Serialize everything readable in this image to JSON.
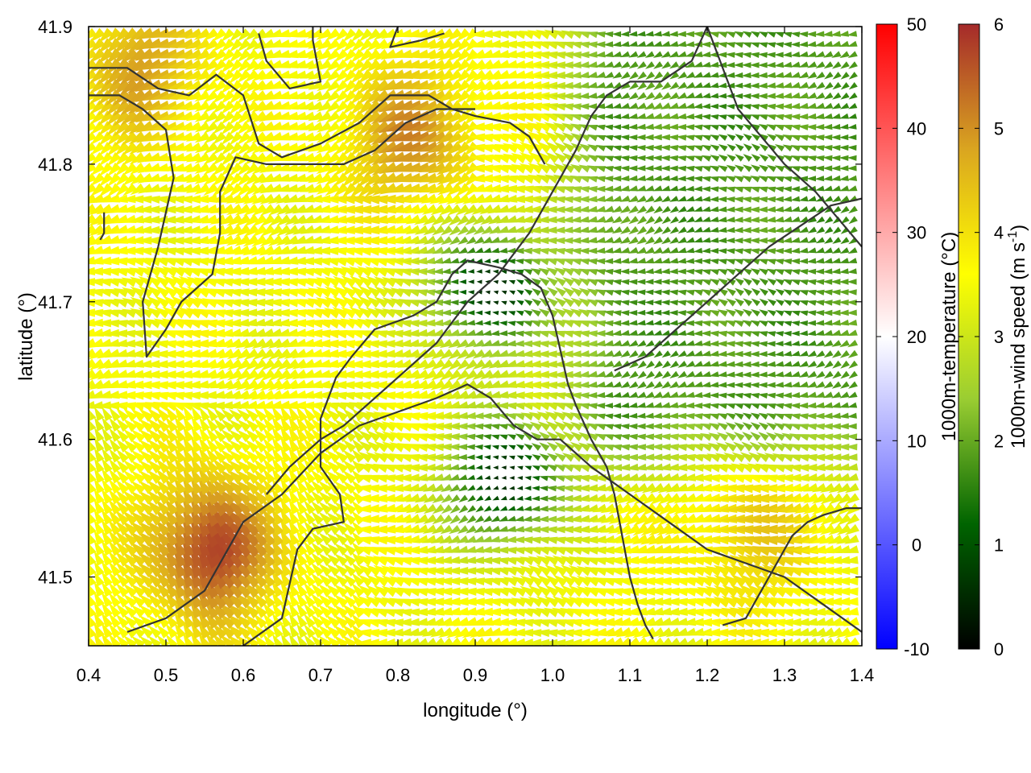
{
  "chart_data": {
    "type": "heatmap",
    "subtype": "vector-field-with-contours",
    "xlabel": "longitude (°)",
    "ylabel": "latitude (°)",
    "xlim": [
      0.4,
      1.4
    ],
    "ylim": [
      41.45,
      41.9
    ],
    "xticks": [
      "0.4",
      "0.5",
      "0.6",
      "0.7",
      "0.8",
      "0.9",
      "1.0",
      "1.1",
      "1.2",
      "1.3",
      "1.4"
    ],
    "yticks": [
      "41.5",
      "41.6",
      "41.7",
      "41.8",
      "41.9"
    ],
    "grid": false,
    "colorbars": [
      {
        "label": "1000m-temperature (°C)",
        "range": [
          -10,
          50
        ],
        "ticks": [
          "-10",
          "0",
          "10",
          "20",
          "30",
          "40",
          "50"
        ],
        "colors": [
          "#0000ff",
          "#ffffff",
          "#ff0000"
        ]
      },
      {
        "label_prefix": "1000m-wind speed (m s",
        "label_exp": "-1",
        "label_suffix": ")",
        "range": [
          0,
          6
        ],
        "ticks": [
          "0",
          "1",
          "2",
          "3",
          "4",
          "5",
          "6"
        ],
        "colors": [
          "#000000",
          "#006400",
          "#9acd32",
          "#ffff00",
          "#daa520",
          "#a52a2a"
        ]
      }
    ],
    "wind_field": {
      "description_level": "approximate",
      "calm_centers": [
        {
          "lon": 0.92,
          "lat": 41.71,
          "speed_min": 0.5
        },
        {
          "lon": 0.94,
          "lat": 41.57,
          "speed_min": 0.5
        }
      ],
      "strong_regions": [
        {
          "lon": 0.56,
          "lat": 41.52,
          "speed": 5.9
        },
        {
          "lon": 0.82,
          "lat": 41.82,
          "speed": 5.0
        },
        {
          "lon": 0.47,
          "lat": 41.87,
          "speed": 4.8
        },
        {
          "lon": 1.26,
          "lat": 41.53,
          "speed": 4.3
        }
      ],
      "east_region_speed": 1.8,
      "background_speed": 3.5
    },
    "contours": [
      [
        [
          0.4,
          41.87
        ],
        [
          0.45,
          41.87
        ],
        [
          0.49,
          41.855
        ],
        [
          0.53,
          41.85
        ],
        [
          0.565,
          41.865
        ],
        [
          0.6,
          41.85
        ],
        [
          0.62,
          41.815
        ],
        [
          0.65,
          41.805
        ],
        [
          0.7,
          41.815
        ],
        [
          0.75,
          41.83
        ],
        [
          0.79,
          41.85
        ],
        [
          0.84,
          41.85
        ],
        [
          0.87,
          41.84
        ],
        [
          0.9,
          41.835
        ],
        [
          0.945,
          41.83
        ],
        [
          0.97,
          41.82
        ],
        [
          0.99,
          41.8
        ]
      ],
      [
        [
          0.4,
          41.85
        ],
        [
          0.44,
          41.85
        ],
        [
          0.47,
          41.84
        ],
        [
          0.5,
          41.825
        ],
        [
          0.51,
          41.79
        ],
        [
          0.49,
          41.74
        ],
        [
          0.47,
          41.7
        ],
        [
          0.475,
          41.66
        ],
        [
          0.5,
          41.68
        ],
        [
          0.52,
          41.7
        ],
        [
          0.56,
          41.72
        ],
        [
          0.57,
          41.75
        ],
        [
          0.57,
          41.78
        ],
        [
          0.59,
          41.805
        ],
        [
          0.63,
          41.8
        ],
        [
          0.68,
          41.8
        ],
        [
          0.73,
          41.8
        ],
        [
          0.77,
          41.81
        ],
        [
          0.81,
          41.83
        ],
        [
          0.85,
          41.84
        ],
        [
          0.9,
          41.84
        ]
      ],
      [
        [
          0.42,
          41.765
        ],
        [
          0.42,
          41.75
        ],
        [
          0.415,
          41.745
        ]
      ],
      [
        [
          0.62,
          41.895
        ],
        [
          0.63,
          41.875
        ],
        [
          0.66,
          41.855
        ],
        [
          0.7,
          41.86
        ],
        [
          0.69,
          41.89
        ],
        [
          0.69,
          41.9
        ]
      ],
      [
        [
          0.8,
          41.9
        ],
        [
          0.79,
          41.885
        ],
        [
          0.83,
          41.89
        ],
        [
          0.86,
          41.895
        ]
      ],
      [
        [
          0.6,
          41.45
        ],
        [
          0.65,
          41.47
        ],
        [
          0.67,
          41.52
        ],
        [
          0.69,
          41.535
        ],
        [
          0.73,
          41.54
        ],
        [
          0.725,
          41.56
        ],
        [
          0.7,
          41.58
        ],
        [
          0.7,
          41.615
        ],
        [
          0.72,
          41.645
        ],
        [
          0.74,
          41.66
        ],
        [
          0.77,
          41.68
        ],
        [
          0.82,
          41.69
        ],
        [
          0.85,
          41.7
        ],
        [
          0.87,
          41.72
        ],
        [
          0.89,
          41.73
        ],
        [
          0.93,
          41.725
        ],
        [
          0.96,
          41.72
        ],
        [
          0.985,
          41.71
        ],
        [
          1.0,
          41.69
        ],
        [
          1.01,
          41.665
        ],
        [
          1.02,
          41.64
        ],
        [
          1.03,
          41.625
        ],
        [
          1.05,
          41.6
        ],
        [
          1.07,
          41.58
        ],
        [
          1.08,
          41.56
        ],
        [
          1.09,
          41.53
        ],
        [
          1.1,
          41.5
        ],
        [
          1.11,
          41.48
        ],
        [
          1.12,
          41.465
        ],
        [
          1.13,
          41.455
        ]
      ],
      [
        [
          0.63,
          41.56
        ],
        [
          0.66,
          41.58
        ],
        [
          0.7,
          41.6
        ],
        [
          0.73,
          41.61
        ],
        [
          0.77,
          41.63
        ],
        [
          0.81,
          41.65
        ],
        [
          0.85,
          41.67
        ],
        [
          0.89,
          41.7
        ],
        [
          0.93,
          41.72
        ],
        [
          0.97,
          41.75
        ],
        [
          1.0,
          41.78
        ],
        [
          1.03,
          41.81
        ],
        [
          1.05,
          41.835
        ],
        [
          1.07,
          41.85
        ],
        [
          1.1,
          41.86
        ],
        [
          1.14,
          41.86
        ],
        [
          1.18,
          41.875
        ],
        [
          1.2,
          41.9
        ]
      ],
      [
        [
          0.45,
          41.46
        ],
        [
          0.5,
          41.47
        ],
        [
          0.55,
          41.49
        ],
        [
          0.58,
          41.52
        ],
        [
          0.6,
          41.54
        ],
        [
          0.65,
          41.56
        ],
        [
          0.7,
          41.59
        ],
        [
          0.75,
          41.61
        ],
        [
          0.8,
          41.62
        ],
        [
          0.85,
          41.63
        ],
        [
          0.89,
          41.64
        ],
        [
          0.92,
          41.63
        ],
        [
          0.95,
          41.61
        ],
        [
          0.98,
          41.6
        ],
        [
          1.01,
          41.6
        ],
        [
          1.05,
          41.58
        ],
        [
          1.1,
          41.56
        ],
        [
          1.15,
          41.54
        ],
        [
          1.2,
          41.52
        ],
        [
          1.25,
          41.51
        ],
        [
          1.3,
          41.5
        ],
        [
          1.35,
          41.48
        ],
        [
          1.4,
          41.46
        ]
      ],
      [
        [
          1.22,
          41.465
        ],
        [
          1.25,
          41.47
        ],
        [
          1.27,
          41.49
        ],
        [
          1.29,
          41.51
        ],
        [
          1.31,
          41.53
        ],
        [
          1.33,
          41.54
        ],
        [
          1.35,
          41.545
        ],
        [
          1.38,
          41.55
        ],
        [
          1.4,
          41.55
        ]
      ],
      [
        [
          1.2,
          41.9
        ],
        [
          1.22,
          41.87
        ],
        [
          1.24,
          41.84
        ],
        [
          1.27,
          41.82
        ],
        [
          1.3,
          41.8
        ],
        [
          1.34,
          41.78
        ],
        [
          1.37,
          41.76
        ],
        [
          1.4,
          41.74
        ]
      ],
      [
        [
          1.08,
          41.65
        ],
        [
          1.12,
          41.66
        ],
        [
          1.16,
          41.68
        ],
        [
          1.2,
          41.7
        ],
        [
          1.24,
          41.72
        ],
        [
          1.28,
          41.74
        ],
        [
          1.32,
          41.755
        ],
        [
          1.36,
          41.77
        ],
        [
          1.4,
          41.775
        ]
      ]
    ]
  }
}
